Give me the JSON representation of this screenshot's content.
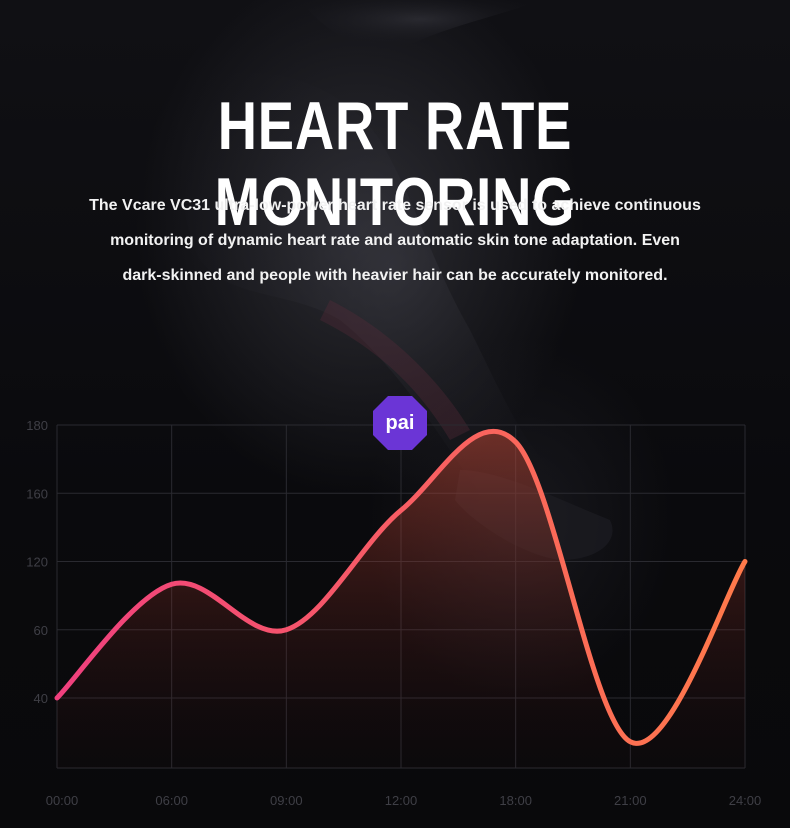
{
  "header": {
    "title": "HEART RATE MONITORING",
    "description_lines": [
      "The Vcare VC31 ultra-low-power heart rate sensor is used to achieve continuous",
      "monitoring of dynamic heart rate and automatic skin tone adaptation. Even",
      "dark-skinned and people with heavier hair can be accurately monitored."
    ]
  },
  "badge": {
    "label": "pai",
    "color": "#6b35d6"
  },
  "colors": {
    "line_start": "#f0407e",
    "line_end": "#ff7a4a",
    "grid": "#2a2a30",
    "tick": "#3f3f46"
  },
  "chart_data": {
    "type": "line",
    "x_ticks": [
      "00:00",
      "06:00",
      "09:00",
      "12:00",
      "18:00",
      "21:00",
      "24:00"
    ],
    "y_ticks": [
      "40",
      "60",
      "120",
      "160",
      "180"
    ],
    "series": [
      {
        "values": [
          [
            "00:00",
            40
          ],
          [
            "06:00",
            100
          ],
          [
            "09:00",
            60
          ],
          [
            "12:00",
            150
          ],
          [
            "18:00",
            175
          ],
          [
            "21:00",
            15
          ],
          [
            "24:00",
            120
          ]
        ]
      }
    ],
    "grid": true
  }
}
